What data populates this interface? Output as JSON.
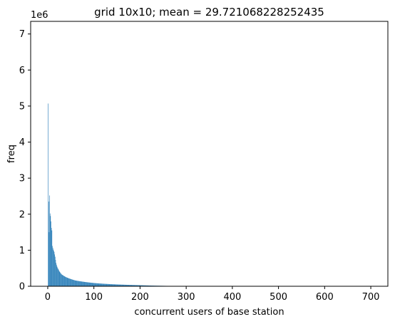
{
  "chart_data": {
    "type": "bar",
    "title": "grid 10x10; mean = 29.721068228252435",
    "xlabel": "concurrent users of base station",
    "ylabel": "freq",
    "y_offset_label": "1e6",
    "xlim": [
      -37,
      737
    ],
    "ylim": [
      0,
      7.35
    ],
    "y_unit_multiplier": 1000000,
    "xticks": [
      0,
      100,
      200,
      300,
      400,
      500,
      600,
      700
    ],
    "yticks": [
      0,
      1,
      2,
      3,
      4,
      5,
      6,
      7
    ],
    "grid": false,
    "bar_color": "#1f77b4",
    "bars_x_range": [
      1,
      730
    ],
    "values_note_units": "millions",
    "peaks": [
      {
        "x": 1,
        "value": 5.07
      },
      {
        "x": 2,
        "value": 2.35
      },
      {
        "x": 3,
        "value": 1.5
      },
      {
        "x": 4,
        "value": 2.52
      },
      {
        "x": 5,
        "value": 2.02
      },
      {
        "x": 6,
        "value": 1.95
      },
      {
        "x": 7,
        "value": 1.8
      },
      {
        "x": 8,
        "value": 1.62
      },
      {
        "x": 9,
        "value": 1.55
      },
      {
        "x": 10,
        "value": 1.12
      },
      {
        "x": 12,
        "value": 1.02
      },
      {
        "x": 14,
        "value": 0.95
      },
      {
        "x": 16,
        "value": 0.82
      },
      {
        "x": 18,
        "value": 0.65
      },
      {
        "x": 20,
        "value": 0.55
      },
      {
        "x": 25,
        "value": 0.42
      },
      {
        "x": 30,
        "value": 0.33
      },
      {
        "x": 40,
        "value": 0.25
      },
      {
        "x": 50,
        "value": 0.2
      },
      {
        "x": 60,
        "value": 0.16
      },
      {
        "x": 80,
        "value": 0.12
      },
      {
        "x": 100,
        "value": 0.09
      },
      {
        "x": 120,
        "value": 0.07
      },
      {
        "x": 150,
        "value": 0.05
      },
      {
        "x": 200,
        "value": 0.03
      },
      {
        "x": 250,
        "value": 0.012
      },
      {
        "x": 300,
        "value": 0.004
      },
      {
        "x": 400,
        "value": 0.002
      },
      {
        "x": 500,
        "value": 0.0015
      },
      {
        "x": 600,
        "value": 0.001
      },
      {
        "x": 730,
        "value": 0.0005
      }
    ]
  }
}
